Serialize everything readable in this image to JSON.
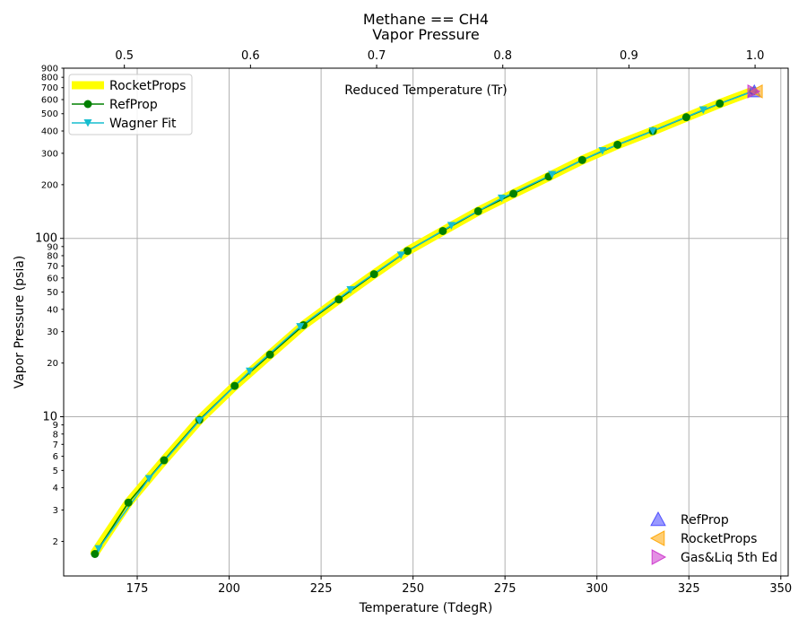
{
  "chart_data": {
    "type": "line",
    "title": "Methane == CH4",
    "subtitle": "Vapor Pressure",
    "xlabel": "Temperature (TdegR)",
    "ylabel": "Vapor Pressure (psia)",
    "x2label": "Reduced Temperature (Tr)",
    "xlim": [
      155,
      352
    ],
    "ylim": [
      1.28,
      900
    ],
    "yscale": "log",
    "grid": true,
    "x_ticks": [
      "175",
      "200",
      "225",
      "250",
      "275",
      "300",
      "325",
      "350"
    ],
    "x2_ticks": [
      "0.5",
      "0.6",
      "0.7",
      "0.8",
      "0.9",
      "1.0"
    ],
    "x2_tick_positions_tr": [
      0.5,
      0.6,
      0.7,
      0.8,
      0.9,
      1.0
    ],
    "tc": 343.0,
    "y_major_ticks": [
      "10",
      "100"
    ],
    "y_minor_ticks": [
      "2",
      "3",
      "4",
      "5",
      "6",
      "7",
      "8",
      "9",
      "20",
      "30",
      "40",
      "50",
      "60",
      "70",
      "80",
      "90",
      "200",
      "300",
      "400",
      "500",
      "600",
      "700",
      "800",
      "900"
    ],
    "legend_lines": {
      "placement": "top-left",
      "items": [
        "RocketProps",
        "RefProp",
        "Wagner Fit"
      ]
    },
    "legend_points": {
      "placement": "bottom-right",
      "items": [
        "RefProp",
        "RocketProps",
        "Gas&Liq 5th Ed"
      ]
    },
    "series": [
      {
        "name": "RocketProps",
        "color": "#ffff00",
        "x": [
          163.5,
          172.6,
          182.3,
          191.9,
          201.5,
          211.1,
          220.2,
          229.8,
          239.4,
          248.5,
          258.1,
          267.7,
          277.3,
          286.9,
          296.0,
          305.6,
          315.2,
          324.3,
          333.4,
          342.5
        ],
        "y": [
          1.73,
          3.3,
          5.7,
          9.6,
          14.9,
          22.3,
          32.6,
          45.5,
          63.0,
          85.0,
          110,
          142,
          178,
          222,
          275,
          335,
          400,
          478,
          570,
          670
        ]
      },
      {
        "name": "RefProp",
        "color": "#008000",
        "x": [
          163.5,
          172.6,
          182.3,
          191.9,
          201.5,
          211.1,
          220.2,
          229.8,
          239.4,
          248.5,
          258.1,
          267.7,
          277.3,
          286.9,
          296.0,
          305.6,
          315.2,
          324.3,
          333.4,
          342.5
        ],
        "y": [
          1.7,
          3.3,
          5.7,
          9.6,
          14.9,
          22.3,
          32.6,
          45.5,
          63.0,
          85.0,
          110,
          142,
          178,
          222,
          275,
          335,
          400,
          478,
          570,
          670
        ]
      },
      {
        "name": "Wagner Fit",
        "color": "#17becf",
        "x": [
          164.5,
          178.2,
          191.9,
          205.6,
          219.3,
          233.0,
          246.7,
          260.4,
          274.1,
          287.8,
          301.5,
          315.2,
          328.9,
          342.5
        ],
        "y": [
          1.82,
          4.5,
          9.5,
          18.0,
          32.0,
          51.5,
          80.5,
          118,
          168,
          228,
          310,
          400,
          525,
          670
        ]
      }
    ],
    "critical_points": [
      {
        "name": "RefProp",
        "marker": "triangle-up",
        "color": "#4444ff",
        "x": 342.8,
        "y": 667
      },
      {
        "name": "RocketProps",
        "marker": "triangle-left",
        "color": "#ffa500",
        "x": 343.5,
        "y": 667
      },
      {
        "name": "Gas&Liq 5th Ed",
        "marker": "triangle-right",
        "color": "#cc33cc",
        "x": 342.5,
        "y": 667
      }
    ]
  }
}
